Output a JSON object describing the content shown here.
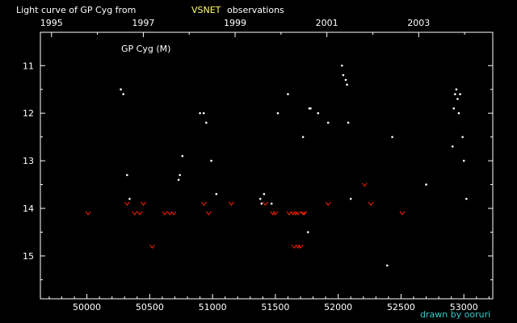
{
  "chart_data": {
    "type": "scatter",
    "title": "Light curve of GP Cyg from",
    "title_source": "VSNET",
    "title_suffix": "observations",
    "star_label": "GP Cyg (M)",
    "credit": "drawn by ooruri",
    "x_range": [
      49630,
      53230
    ],
    "y_range": [
      10.3,
      15.9
    ],
    "y_reversed": true,
    "x_ticks_bottom": [
      "50000",
      "50500",
      "51000",
      "51500",
      "52000",
      "52500",
      "53000"
    ],
    "x_ticks_top": [
      "1995",
      "1997",
      "1999",
      "2001",
      "2003"
    ],
    "y_ticks": [
      "11",
      "12",
      "13",
      "14",
      "15"
    ],
    "colors": {
      "background": "#000000",
      "observation": "#ffffff",
      "upper_limit": "#ff2200",
      "title_source": "#ffff66",
      "credit": "#33cccc"
    },
    "series": [
      {
        "kind": "observation",
        "x": [
          50270,
          50290,
          50320,
          50340,
          50730,
          50740,
          50760,
          50900,
          50930,
          50950,
          50990,
          51030,
          51380,
          51390,
          51410,
          51470,
          51520,
          51600,
          51720,
          51760,
          51770,
          51780,
          51840,
          51920,
          52030,
          52040,
          52060,
          52070,
          52080,
          52100,
          52390,
          52430,
          52700,
          52910,
          52920,
          52930,
          52940,
          52950,
          52960,
          52970,
          52990,
          53000,
          53020
        ],
        "y": [
          11.5,
          11.6,
          13.3,
          13.8,
          13.4,
          13.3,
          12.9,
          12.0,
          12.0,
          12.2,
          13.0,
          13.7,
          13.8,
          13.9,
          13.7,
          13.9,
          12.0,
          11.6,
          12.5,
          14.5,
          11.9,
          11.9,
          12.0,
          12.2,
          11.0,
          11.2,
          11.3,
          11.4,
          12.2,
          13.8,
          15.2,
          12.5,
          13.5,
          12.7,
          11.9,
          11.6,
          11.5,
          11.7,
          12.0,
          11.6,
          12.5,
          13.0,
          13.8
        ]
      },
      {
        "kind": "upper_limit",
        "x": [
          50010,
          50320,
          50380,
          50420,
          50450,
          50520,
          50620,
          50660,
          50690,
          50930,
          50970,
          51150,
          51420,
          51480,
          51500,
          51610,
          51640,
          51650,
          51660,
          51680,
          51680,
          51700,
          51720,
          51730,
          51920,
          52210,
          52260,
          52510
        ],
        "y": [
          14.1,
          13.9,
          14.1,
          14.1,
          13.9,
          14.8,
          14.1,
          14.1,
          14.1,
          13.9,
          14.1,
          13.9,
          13.9,
          14.1,
          14.1,
          14.1,
          14.1,
          14.8,
          14.1,
          14.8,
          14.1,
          14.8,
          14.1,
          14.1,
          13.9,
          13.5,
          13.9,
          14.1
        ]
      }
    ]
  }
}
